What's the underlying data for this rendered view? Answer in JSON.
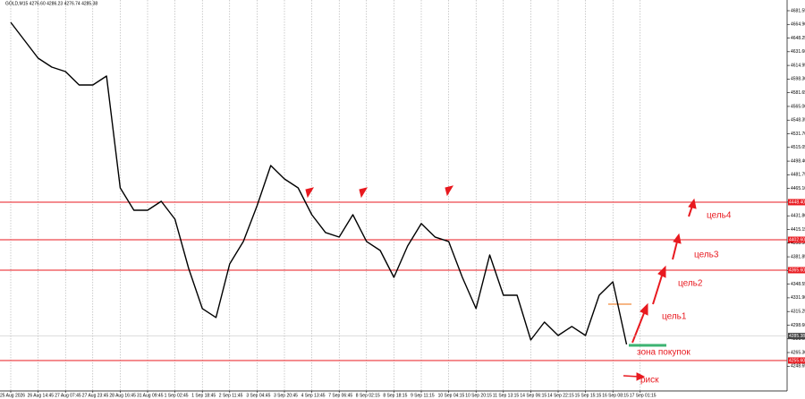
{
  "chart_data": {
    "type": "line",
    "title": "GOLD,M15  4276.60 4286.23 4276.74 4285.38",
    "categories": [
      "25 Aug 2026",
      null,
      "26 Aug 14:45",
      null,
      "27 Aug 07:45",
      null,
      "27 Aug 23:45",
      null,
      "28 Aug 16:45",
      null,
      "31 Aug 09:45",
      null,
      "1 Sep 02:45",
      null,
      "1 Sep 18:45",
      null,
      "2 Sep 11:45",
      null,
      "3 Sep 04:45",
      null,
      "3 Sep 20:45",
      null,
      "4 Sep 13:45",
      null,
      "7 Sep 06:45",
      null,
      "8 Sep 02:15",
      null,
      "8 Sep 18:15",
      null,
      "9 Sep 11:15",
      null,
      "10 Sep 04:15",
      null,
      "10 Sep 20:15",
      null,
      "11 Sep 13:15",
      null,
      "14 Sep 06:15",
      null,
      "14 Sep 22:15",
      null,
      "15 Sep 15:15",
      null,
      "16 Sep 08:15",
      null,
      "17 Sep 01:15",
      null,
      null,
      null,
      null,
      null,
      null,
      null,
      null,
      null,
      null
    ],
    "values": [
      4667.4,
      4645.6,
      4623.8,
      4612.9,
      4607.4,
      4591.1,
      4591.1,
      4602,
      4465.8,
      4438.6,
      4438.6,
      4449.5,
      4427.7,
      4367.8,
      4318.8,
      4307.9,
      4373.2,
      4400.5,
      4444,
      4493.1,
      4476.7,
      4465.8,
      4433.1,
      4411.4,
      4405.9,
      4433.1,
      4400.5,
      4389.6,
      4356.9,
      4395,
      4422.3,
      4406,
      4400.5,
      4356.9,
      4318.8,
      4384.1,
      4335.1,
      4335.1,
      4280.6,
      4302.4,
      4286.1,
      4297,
      4286.1,
      4335.1,
      4351.4,
      4275.2,
      null,
      null,
      null,
      null,
      null,
      null,
      null,
      null,
      null,
      null,
      null
    ],
    "color": "#000000",
    "ylim": [
      4218.5,
      4694.6
    ],
    "yticks": [
      4681.55,
      {
        "value": 4664.9,
        "label": "4664.90"
      },
      4648.25,
      {
        "value": 4631.6,
        "label": "4631.60"
      },
      4614.95,
      {
        "value": 4598.3,
        "label": "4598.30"
      },
      4581.65,
      {
        "value": 4565,
        "label": "4565.00"
      },
      4548.35,
      {
        "value": 4531.7,
        "label": "4531.70"
      },
      4515.05,
      {
        "value": 4498.4,
        "label": "4498.40"
      },
      4481.75,
      {
        "value": 4465.1,
        "label": "4465.10"
      },
      4448.45,
      {
        "value": 4431.8,
        "label": "4431.80"
      },
      4415.15,
      {
        "value": 4398.5,
        "label": "4398.50"
      },
      4381.85,
      {
        "value": 4365.2,
        "label": "4365.20"
      },
      4348.55,
      {
        "value": 4331.9,
        "label": "4331.90"
      },
      4315.25,
      {
        "value": 4298.6,
        "label": "4298.60"
      },
      4281.95,
      {
        "value": 4265.3,
        "label": "4265.30"
      },
      4248.65
    ],
    "grid": true,
    "levels": [
      {
        "value": 4448.4,
        "label": "4448.40"
      },
      {
        "value": 4402.6,
        "label": "4402.60"
      },
      {
        "value": 4365.6,
        "label": "4365.60"
      },
      {
        "value": 4255.6,
        "label": "4255.60"
      }
    ],
    "level_color": "#e8191f",
    "current_price": {
      "value": 4285.38,
      "label": "4285.38"
    },
    "annotations": [
      "цель1",
      "цель2",
      "цель3",
      "цель4",
      "зона покупок",
      "риск"
    ]
  }
}
